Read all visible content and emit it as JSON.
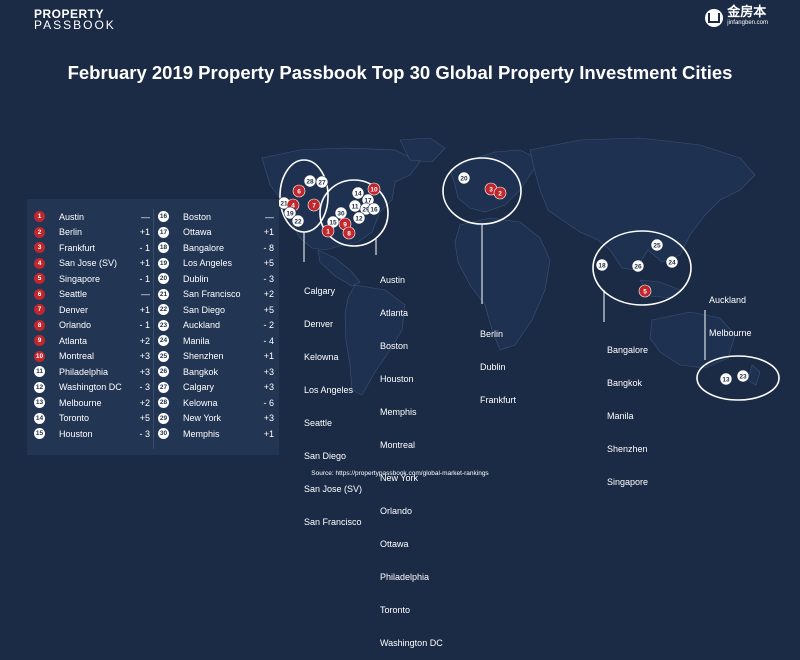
{
  "brand": {
    "line1": "PROPERTY",
    "line2": "PASSBOOK",
    "right_name": "金房本",
    "right_url": "jinfangben.com"
  },
  "title": "February 2019 Property Passbook Top 30 Global Property Investment Cities",
  "rankings": [
    {
      "rank": "1",
      "city": "Austin",
      "change": "—",
      "top5": true
    },
    {
      "rank": "2",
      "city": "Berlin",
      "change": "+1",
      "top5": true
    },
    {
      "rank": "3",
      "city": "Frankfurt",
      "change": "- 1",
      "top5": true
    },
    {
      "rank": "4",
      "city": "San Jose (SV)",
      "change": "+1",
      "top5": true
    },
    {
      "rank": "5",
      "city": "Singapore",
      "change": "- 1",
      "top5": true
    },
    {
      "rank": "6",
      "city": "Seattle",
      "change": "—",
      "top5": true
    },
    {
      "rank": "7",
      "city": "Denver",
      "change": "+1",
      "top5": true
    },
    {
      "rank": "8",
      "city": "Orlando",
      "change": "- 1",
      "top5": true
    },
    {
      "rank": "9",
      "city": "Atlanta",
      "change": "+2",
      "top5": true
    },
    {
      "rank": "10",
      "city": "Montreal",
      "change": "+3",
      "top5": true
    },
    {
      "rank": "11",
      "city": "Philadelphia",
      "change": "+3",
      "top5": false
    },
    {
      "rank": "12",
      "city": "Washington DC",
      "change": "- 3",
      "top5": false
    },
    {
      "rank": "13",
      "city": "Melbourne",
      "change": "+2",
      "top5": false
    },
    {
      "rank": "14",
      "city": "Toronto",
      "change": "+5",
      "top5": false
    },
    {
      "rank": "15",
      "city": "Houston",
      "change": "- 3",
      "top5": false
    },
    {
      "rank": "16",
      "city": "Boston",
      "change": "—",
      "top5": false
    },
    {
      "rank": "17",
      "city": "Ottawa",
      "change": "+1",
      "top5": false
    },
    {
      "rank": "18",
      "city": "Bangalore",
      "change": "- 8",
      "top5": false
    },
    {
      "rank": "19",
      "city": "Los Angeles",
      "change": "+5",
      "top5": false
    },
    {
      "rank": "20",
      "city": "Dublin",
      "change": "- 3",
      "top5": false
    },
    {
      "rank": "21",
      "city": "San Francisco",
      "change": "+2",
      "top5": false
    },
    {
      "rank": "22",
      "city": "San Diego",
      "change": "+5",
      "top5": false
    },
    {
      "rank": "23",
      "city": "Auckland",
      "change": "- 2",
      "top5": false
    },
    {
      "rank": "24",
      "city": "Manila",
      "change": "- 4",
      "top5": false
    },
    {
      "rank": "25",
      "city": "Shenzhen",
      "change": "+1",
      "top5": false
    },
    {
      "rank": "26",
      "city": "Bangkok",
      "change": "+3",
      "top5": false
    },
    {
      "rank": "27",
      "city": "Calgary",
      "change": "+3",
      "top5": false
    },
    {
      "rank": "28",
      "city": "Kelowna",
      "change": "- 6",
      "top5": false
    },
    {
      "rank": "29",
      "city": "New York",
      "change": "+3",
      "top5": false
    },
    {
      "rank": "30",
      "city": "Memphis",
      "change": "+1",
      "top5": false
    }
  ],
  "groups": {
    "west_na": [
      "Calgary",
      "Denver",
      "Kelowna",
      "Los Angeles",
      "Seattle",
      "San Diego",
      "San Jose (SV)",
      "San Francisco"
    ],
    "east_na": [
      "Austin",
      "Atlanta",
      "Boston",
      "Houston",
      "Memphis",
      "Montreal",
      "New York",
      "Orlando",
      "Ottawa",
      "Philadelphia",
      "Toronto",
      "Washington DC"
    ],
    "europe": [
      "Berlin",
      "Dublin",
      "Frankfurt"
    ],
    "asia": [
      "Bangalore",
      "Bangkok",
      "Manila",
      "Shenzhen",
      "Singapore"
    ],
    "oceania": [
      "Auckland",
      "Melbourne"
    ]
  },
  "markers": [
    {
      "label": "6",
      "red": true
    },
    {
      "label": "28",
      "red": false
    },
    {
      "label": "27",
      "red": false
    },
    {
      "label": "21",
      "red": false
    },
    {
      "label": "4",
      "red": true
    },
    {
      "label": "7",
      "red": true
    },
    {
      "label": "19",
      "red": false
    },
    {
      "label": "22",
      "red": false
    },
    {
      "label": "14",
      "red": false
    },
    {
      "label": "10",
      "red": true
    },
    {
      "label": "17",
      "red": false
    },
    {
      "label": "30",
      "red": false
    },
    {
      "label": "11",
      "red": false
    },
    {
      "label": "29",
      "red": false
    },
    {
      "label": "16",
      "red": false
    },
    {
      "label": "15",
      "red": false
    },
    {
      "label": "9",
      "red": true
    },
    {
      "label": "12",
      "red": false
    },
    {
      "label": "1",
      "red": true
    },
    {
      "label": "8",
      "red": true
    },
    {
      "label": "20",
      "red": false
    },
    {
      "label": "3",
      "red": true
    },
    {
      "label": "2",
      "red": true
    },
    {
      "label": "25",
      "red": false
    },
    {
      "label": "18",
      "red": false
    },
    {
      "label": "26",
      "red": false
    },
    {
      "label": "24",
      "red": false
    },
    {
      "label": "5",
      "red": true
    },
    {
      "label": "13",
      "red": false
    },
    {
      "label": "23",
      "red": false
    }
  ],
  "colors": {
    "background": "#1b2b45",
    "panel": "#223553",
    "marker_red": "#c0272d",
    "marker_white": "#ffffff"
  },
  "source": "Source: https://propertypassbook.com/global-market-rankings"
}
